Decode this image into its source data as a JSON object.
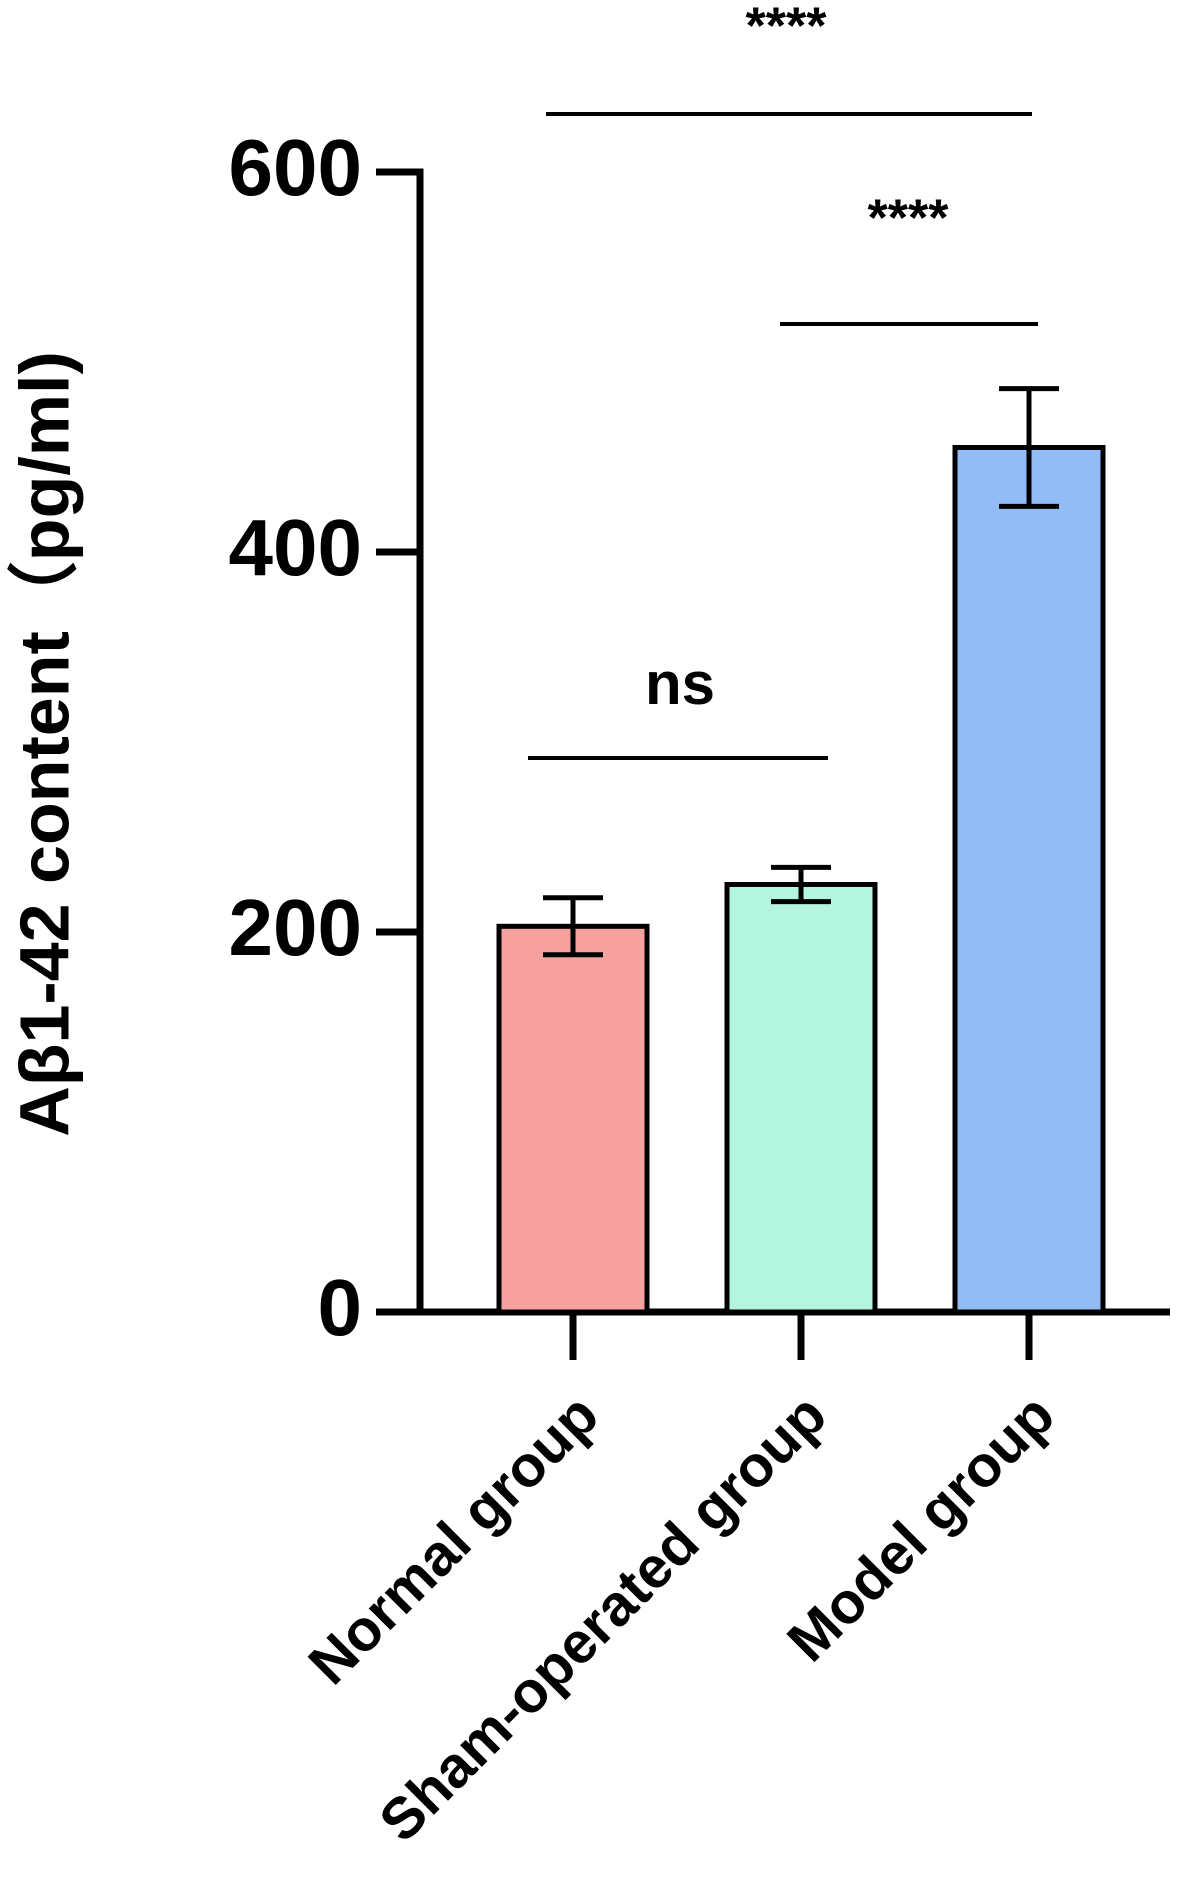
{
  "chart_data": {
    "type": "bar",
    "y_label": "Aβ1-42 content（pg/ml)",
    "categories": [
      "Normal group",
      "Sham-operated group",
      "Model group"
    ],
    "values": [
      203,
      225,
      455
    ],
    "errors": [
      15,
      9,
      31
    ],
    "colors": [
      "#f7a19f",
      "#b3f5de",
      "#92bcf6"
    ],
    "ylim": [
      0,
      600
    ],
    "yticks": [
      0,
      200,
      400,
      600
    ],
    "annotations": [
      "****",
      "****",
      "ns"
    ]
  }
}
